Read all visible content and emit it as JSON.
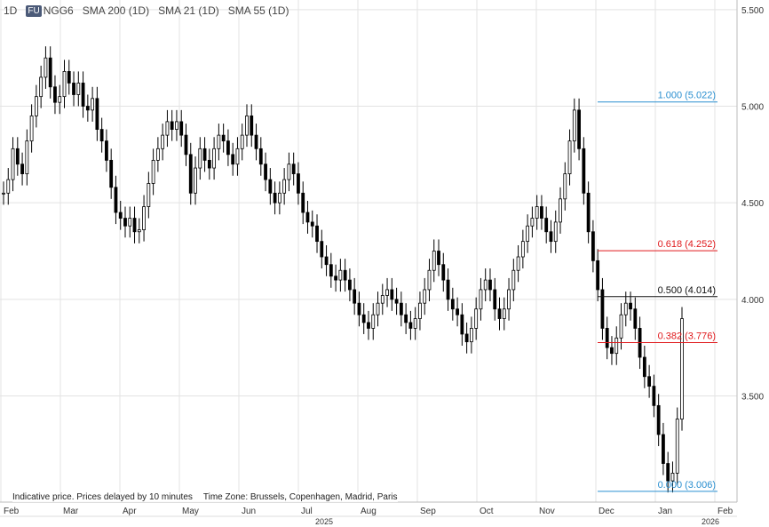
{
  "header": {
    "interval": "1D",
    "exchange_badge": "FU",
    "symbol": "NGG6",
    "indicators": [
      "SMA 200 (1D)",
      "SMA 21 (1D)",
      "SMA 55 (1D)"
    ]
  },
  "footer": {
    "note": "Indicative price. Prices delayed by 10 minutes",
    "timezone": "Time Zone: Brussels, Copenhagen, Madrid, Paris"
  },
  "colors": {
    "candle": "#000000",
    "grid": "#e3e3e3",
    "fib_blue": "#2a8fd0",
    "fib_red": "#e0191c",
    "fib_black": "#111111"
  },
  "chart_data": {
    "type": "candlestick",
    "y_ticks": [
      "5.500",
      "5.000",
      "4.500",
      "4.000",
      "3.500"
    ],
    "ylim": [
      2.95,
      5.55
    ],
    "x_ticks": [
      "Feb",
      "Mar",
      "Apr",
      "May",
      "Jun",
      "Jul",
      "Aug",
      "Sep",
      "Oct",
      "Nov",
      "Dec",
      "Jan",
      "Feb"
    ],
    "year_labels": [
      "2025",
      "2026"
    ],
    "fib_levels": [
      {
        "ratio": "1.000",
        "value": 5.022,
        "label": "1.000 (5.022)",
        "color": "#2a8fd0"
      },
      {
        "ratio": "0.618",
        "value": 4.252,
        "label": "0.618 (4.252)",
        "color": "#e0191c"
      },
      {
        "ratio": "0.500",
        "value": 4.014,
        "label": "0.500 (4.014)",
        "color": "#111111"
      },
      {
        "ratio": "0.382",
        "value": 3.776,
        "label": "0.382 (3.776)",
        "color": "#e0191c"
      },
      {
        "ratio": "0.000",
        "value": 3.006,
        "label": "0.000 (3.006)",
        "color": "#2a8fd0"
      }
    ],
    "series": [
      {
        "close": [
          4.55,
          4.62,
          4.78,
          4.7,
          4.65,
          4.82,
          4.95,
          5.05,
          5.15,
          5.25,
          5.1,
          5.02,
          5.05,
          5.18,
          5.12,
          5.06,
          5.12,
          5.0,
          4.98,
          5.04,
          4.88,
          4.82,
          4.72,
          4.58,
          4.45,
          4.42,
          4.38,
          4.42,
          4.35,
          4.36,
          4.48,
          4.6,
          4.72,
          4.78,
          4.85,
          4.92,
          4.88,
          4.92,
          4.85,
          4.75,
          4.55,
          4.68,
          4.78,
          4.72,
          4.68,
          4.78,
          4.85,
          4.82,
          4.75,
          4.7,
          4.78,
          4.85,
          4.95,
          4.85,
          4.78,
          4.7,
          4.62,
          4.55,
          4.5,
          4.55,
          4.62,
          4.7,
          4.65,
          4.55,
          4.45,
          4.4,
          4.38,
          4.3,
          4.22,
          4.18,
          4.12,
          4.1,
          4.15,
          4.1,
          4.05,
          3.98,
          3.92,
          3.88,
          3.85,
          3.92,
          3.98,
          4.02,
          4.05,
          4.0,
          3.98,
          3.92,
          3.88,
          3.85,
          3.9,
          3.98,
          4.05,
          4.15,
          4.25,
          4.18,
          4.1,
          4.0,
          3.95,
          3.92,
          3.82,
          3.78,
          3.85,
          3.95,
          4.05,
          4.1,
          4.05,
          3.95,
          3.9,
          3.95,
          4.05,
          4.15,
          4.22,
          4.3,
          4.38,
          4.42,
          4.48,
          4.42,
          4.35,
          4.3,
          4.4,
          4.52,
          4.65,
          4.82,
          4.98,
          4.78,
          4.55,
          4.35,
          4.2,
          4.05,
          3.85,
          3.75,
          3.72,
          3.8,
          3.92,
          3.98,
          3.95,
          3.85,
          3.7,
          3.6,
          3.55,
          3.45,
          3.3,
          3.15,
          3.06,
          3.1,
          3.38,
          3.9
        ]
      }
    ]
  }
}
